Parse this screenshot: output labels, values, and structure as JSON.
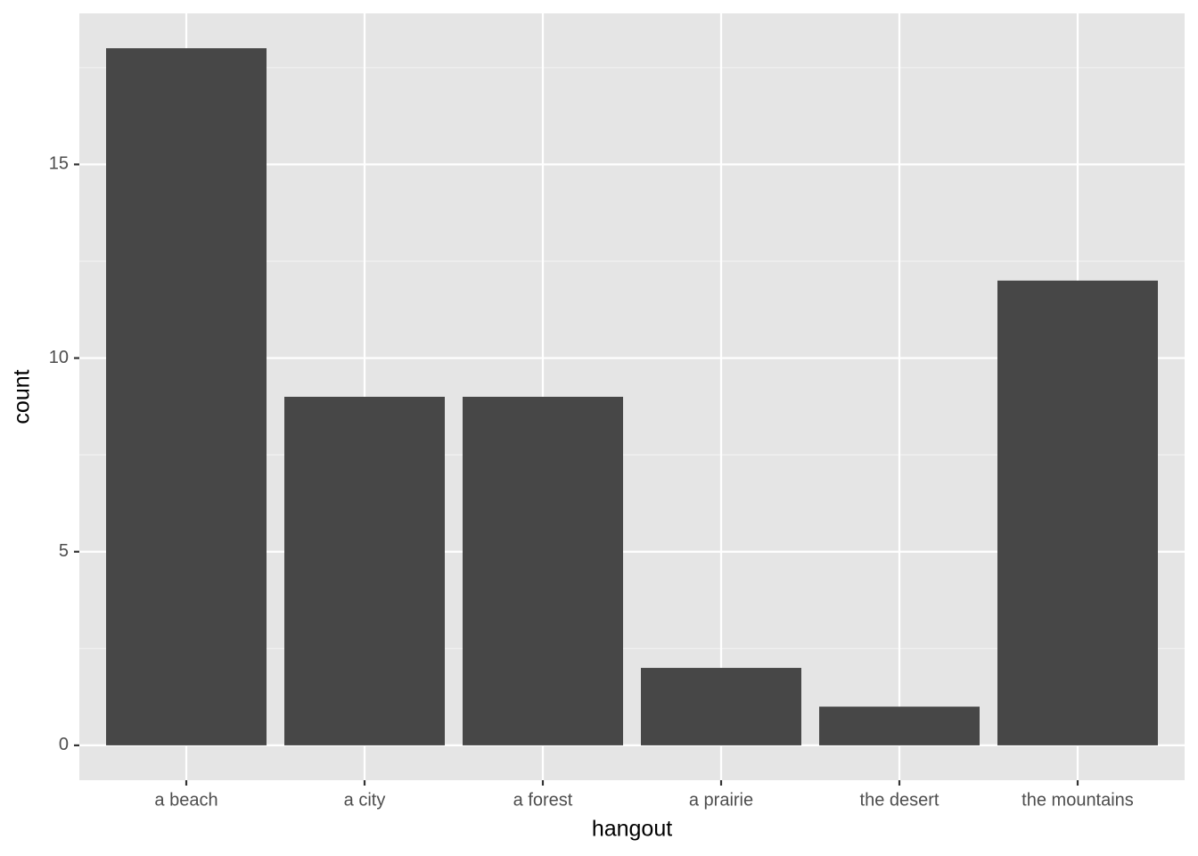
{
  "chart_data": {
    "type": "bar",
    "x_label": "hangout",
    "y_label": "count",
    "categories": [
      "a beach",
      "a city",
      "a forest",
      "a prairie",
      "the desert",
      "the mountains"
    ],
    "values": [
      18,
      9,
      9,
      2,
      1,
      12
    ],
    "color": "#474747",
    "ylim": [
      -0.9,
      18.9
    ],
    "yticks": [
      0,
      5,
      10,
      15
    ],
    "grid": true
  }
}
